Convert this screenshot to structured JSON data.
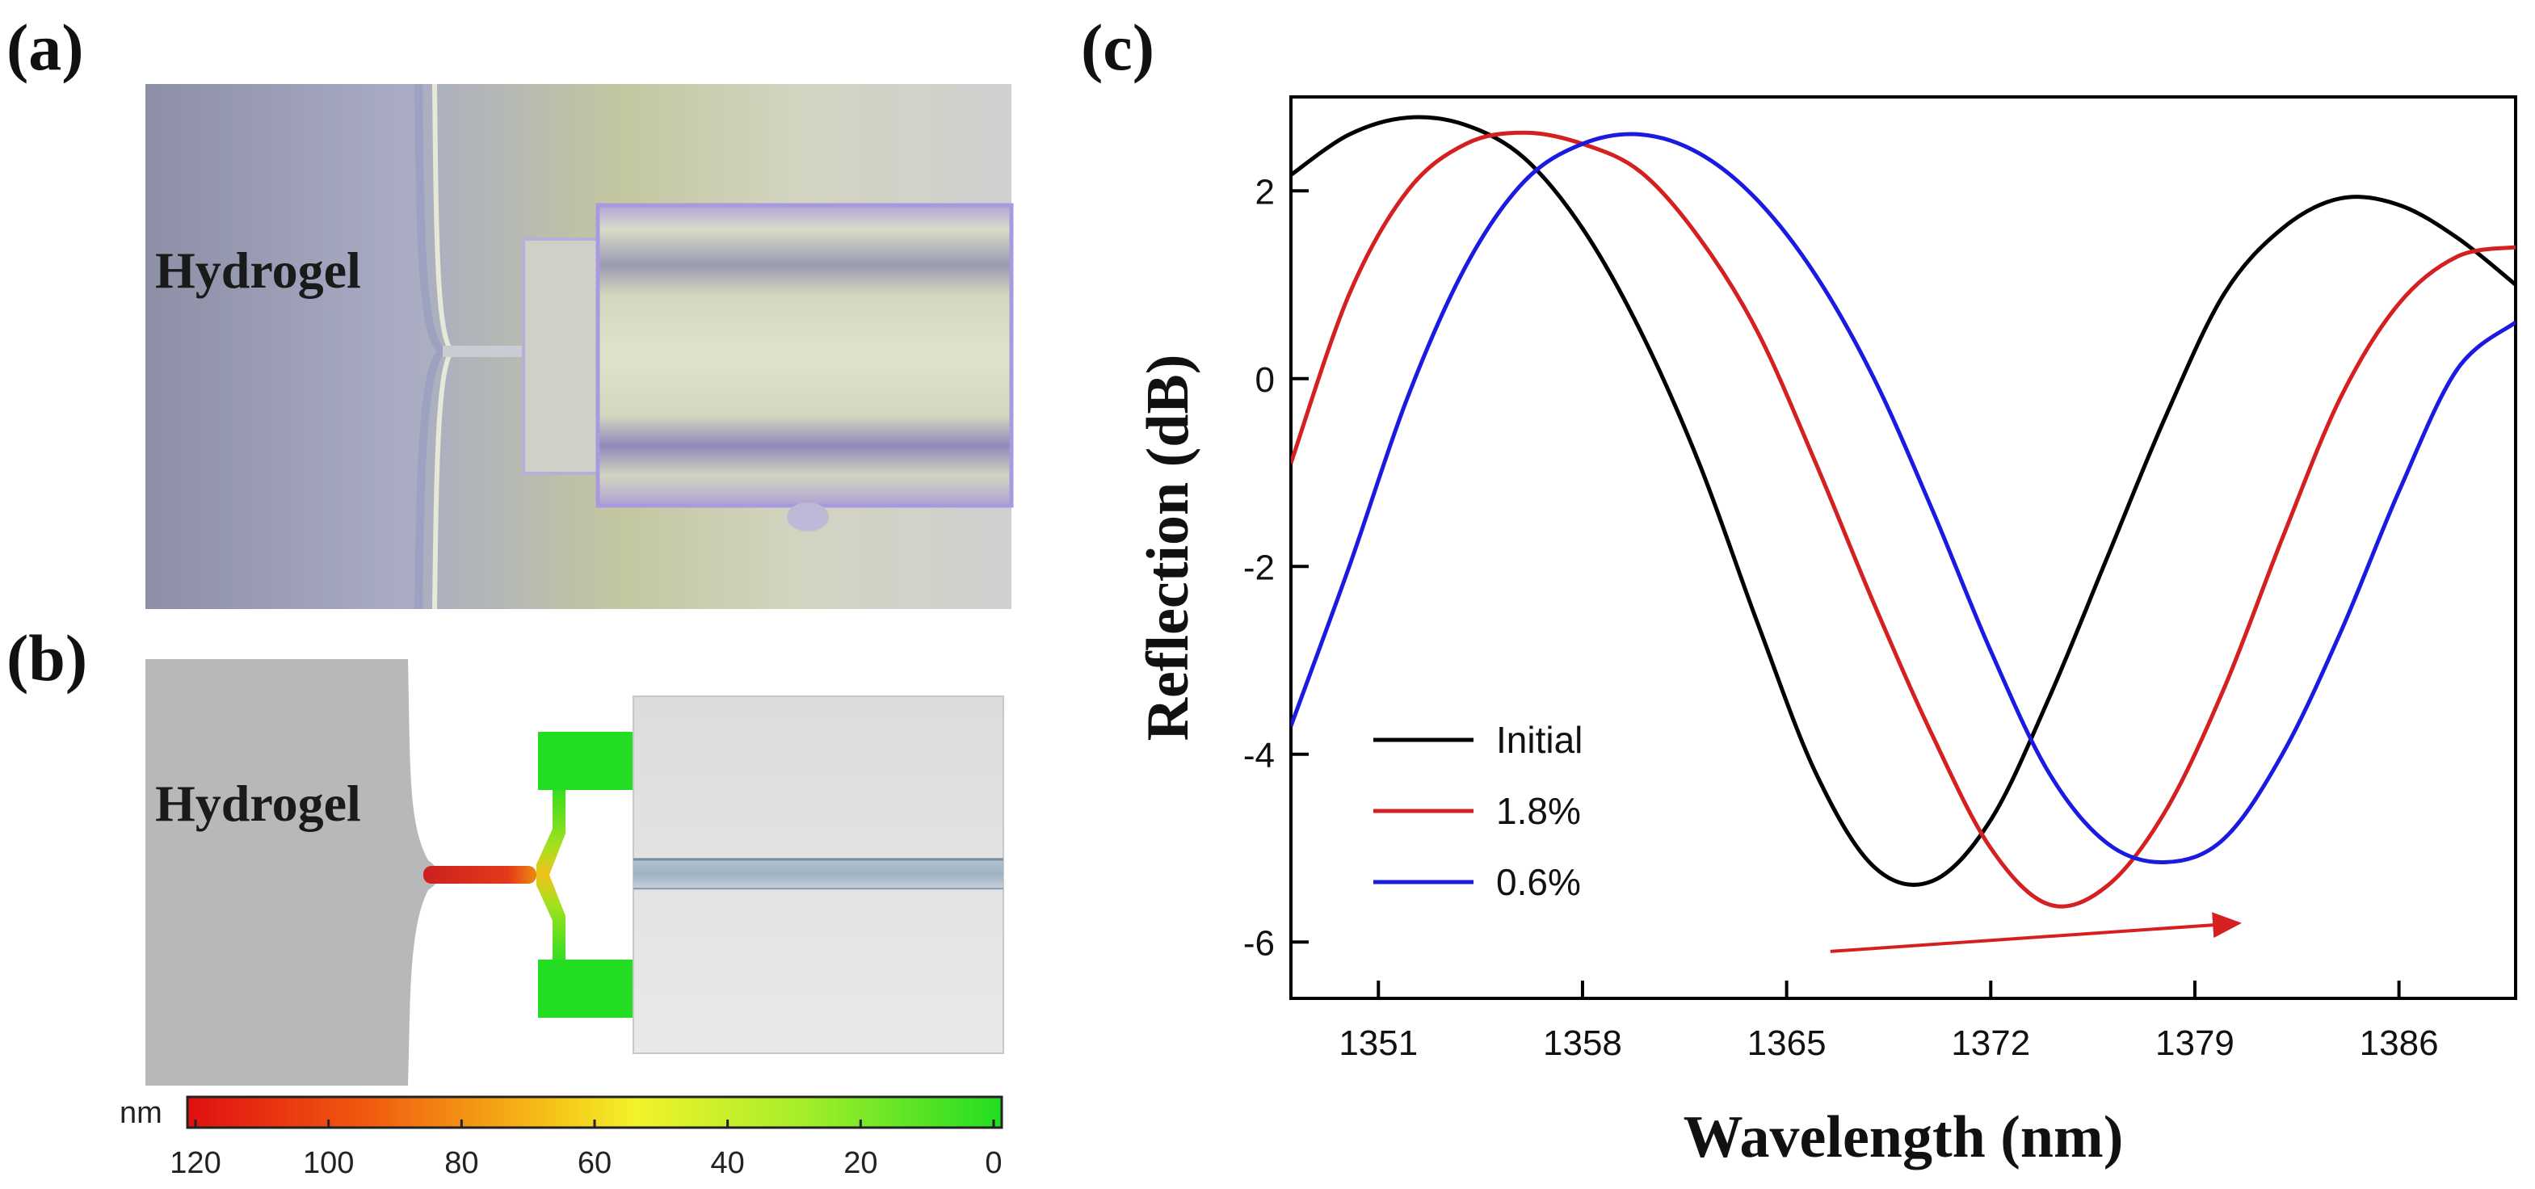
{
  "panels": {
    "a": {
      "label": "(a)",
      "text": "Hydrogel"
    },
    "b": {
      "label": "(b)",
      "text": "Hydrogel",
      "colorbar_unit": "nm",
      "colorbar_ticks": [
        "120",
        "100",
        "80",
        "60",
        "40",
        "20",
        "0"
      ]
    },
    "c": {
      "label": "(c)"
    }
  },
  "colors": {
    "initial": "#000000",
    "s18": "#d42020",
    "s06": "#1a1ae0",
    "arrow": "#d42020",
    "green": "#22dd22",
    "red": "#dd2222"
  },
  "chart_data": {
    "type": "line",
    "title": "",
    "xlabel": "Wavelength (nm)",
    "ylabel": "Reflection (dB)",
    "xlim": [
      1348,
      1390
    ],
    "ylim": [
      -6.6,
      3.0
    ],
    "xticks": [
      1351,
      1358,
      1365,
      1372,
      1379,
      1386
    ],
    "yticks": [
      -6,
      -4,
      -2,
      0,
      2
    ],
    "legend_position": "lower-left",
    "series": [
      {
        "name": "Initial",
        "key": "initial",
        "x": [
          1348,
          1350,
          1352,
          1354,
          1356,
          1358,
          1360,
          1362,
          1364,
          1366,
          1368,
          1370,
          1372,
          1374,
          1376,
          1378,
          1380,
          1382,
          1384,
          1386,
          1388,
          1390
        ],
        "y": [
          2.17,
          2.6,
          2.78,
          2.7,
          2.35,
          1.6,
          0.5,
          -0.9,
          -2.6,
          -4.2,
          -5.2,
          -5.35,
          -4.7,
          -3.4,
          -1.9,
          -0.4,
          0.9,
          1.6,
          1.92,
          1.85,
          1.5,
          1.0
        ]
      },
      {
        "name": "1.8%",
        "key": "s18",
        "x": [
          1348,
          1350,
          1352,
          1354,
          1356,
          1358,
          1360,
          1362,
          1364,
          1366,
          1368,
          1370,
          1372,
          1374,
          1376,
          1378,
          1380,
          1382,
          1384,
          1386,
          1388,
          1390
        ],
        "y": [
          -0.9,
          0.9,
          2.0,
          2.5,
          2.62,
          2.5,
          2.2,
          1.5,
          0.5,
          -0.9,
          -2.4,
          -3.8,
          -5.0,
          -5.6,
          -5.4,
          -4.6,
          -3.3,
          -1.7,
          -0.2,
          0.8,
          1.3,
          1.4
        ]
      },
      {
        "name": "0.6%",
        "key": "s06",
        "x": [
          1348,
          1350,
          1352,
          1354,
          1356,
          1358,
          1360,
          1362,
          1364,
          1366,
          1368,
          1370,
          1372,
          1374,
          1376,
          1378,
          1380,
          1382,
          1384,
          1386,
          1388,
          1390
        ],
        "y": [
          -3.7,
          -2.0,
          -0.2,
          1.2,
          2.1,
          2.5,
          2.6,
          2.4,
          1.9,
          1.1,
          0.0,
          -1.4,
          -2.9,
          -4.2,
          -4.95,
          -5.15,
          -4.9,
          -4.0,
          -2.7,
          -1.2,
          0.1,
          0.6
        ]
      }
    ],
    "annotations": [
      {
        "type": "arrow",
        "from": [
          1366.5,
          -6.1
        ],
        "to": [
          1380.5,
          -5.8
        ],
        "color": "#d42020"
      }
    ]
  }
}
